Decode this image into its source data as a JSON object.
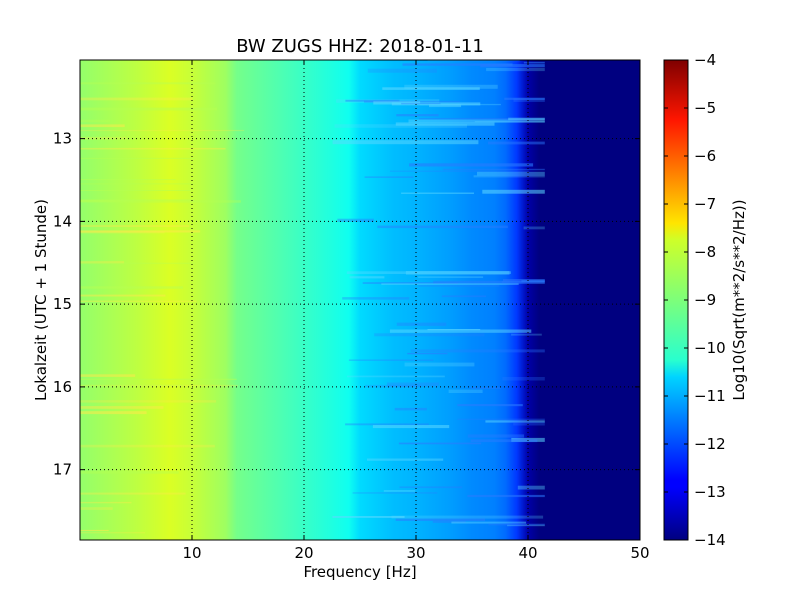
{
  "chart_data": {
    "type": "heatmap",
    "title": "BW ZUGS HHZ: 2018-01-11",
    "xlabel": "Frequency [Hz]",
    "ylabel": "Lokalzeit (UTC + 1 Stunde)",
    "xlim": [
      0,
      50
    ],
    "ylim": [
      12.05,
      17.85
    ],
    "y_inverted": true,
    "x_ticks": [
      10,
      20,
      30,
      40,
      50
    ],
    "y_ticks": [
      13,
      14,
      15,
      16,
      17
    ],
    "grid": true,
    "colormap": "jet",
    "colorbar": {
      "label": "Log10(Sqrt(m**2/s**2/Hz))",
      "range": [
        -14,
        -4
      ],
      "ticks": [
        -4,
        -5,
        -6,
        -7,
        -8,
        -9,
        -10,
        -11,
        -12,
        -13,
        -14
      ]
    },
    "frequency_profile": {
      "frequencies_hz": [
        0,
        5,
        8,
        10,
        13,
        14,
        18,
        20,
        24,
        25,
        28,
        30,
        33,
        35,
        37,
        38,
        39,
        40,
        41,
        42,
        50
      ],
      "log10_amplitude": [
        -8.8,
        -8.4,
        -8.1,
        -8.3,
        -8.7,
        -9.1,
        -9.5,
        -9.7,
        -10.1,
        -10.6,
        -10.9,
        -11.0,
        -11.2,
        -11.4,
        -11.5,
        -11.7,
        -12.2,
        -13.6,
        -14.0,
        -14.0,
        -14.0
      ]
    }
  }
}
